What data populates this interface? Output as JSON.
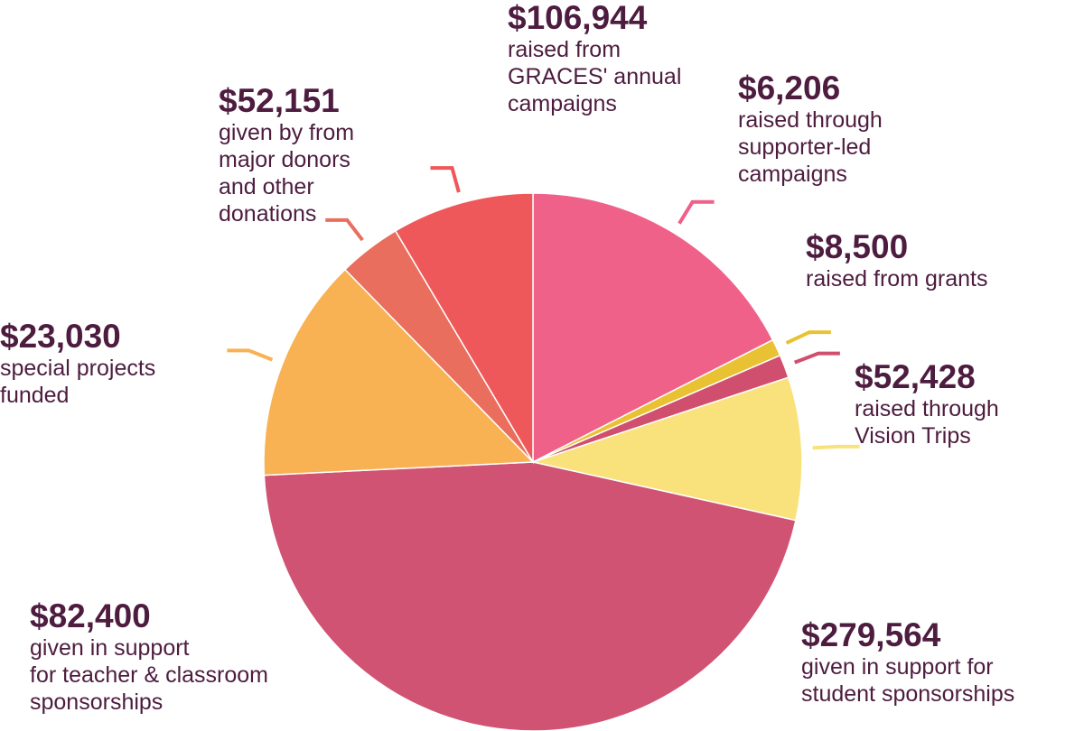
{
  "colors": {
    "text": "#4d1c3f"
  },
  "chart_data": {
    "type": "pie",
    "title": "",
    "slices": [
      {
        "value": 106944,
        "amount": "$106,944",
        "desc_lines": [
          "raised from",
          "GRACES' annual",
          "campaigns"
        ],
        "color": "#ef6189"
      },
      {
        "value": 6206,
        "amount": "$6,206",
        "desc_lines": [
          "raised through",
          "supporter-led",
          "campaigns"
        ],
        "color": "#e9c234"
      },
      {
        "value": 8500,
        "amount": "$8,500",
        "desc_lines": [
          "raised from grants"
        ],
        "color": "#d04f6e"
      },
      {
        "value": 52428,
        "amount": "$52,428",
        "desc_lines": [
          "raised through",
          "Vision Trips"
        ],
        "color": "#f9e27c"
      },
      {
        "value": 279564,
        "amount": "$279,564",
        "desc_lines": [
          "given in support for",
          "student sponsorships"
        ],
        "color": "#d05373"
      },
      {
        "value": 82400,
        "amount": "$82,400",
        "desc_lines": [
          "given in support",
          "for teacher & classroom",
          "sponsorships"
        ],
        "color": "#f8b254"
      },
      {
        "value": 23030,
        "amount": "$23,030",
        "desc_lines": [
          "special projects",
          "funded"
        ],
        "color": "#ea6e5e"
      },
      {
        "value": 52151,
        "amount": "$52,151",
        "desc_lines": [
          "given by from",
          "major donors",
          "and other",
          "donations"
        ],
        "color": "#ef585a"
      }
    ]
  }
}
